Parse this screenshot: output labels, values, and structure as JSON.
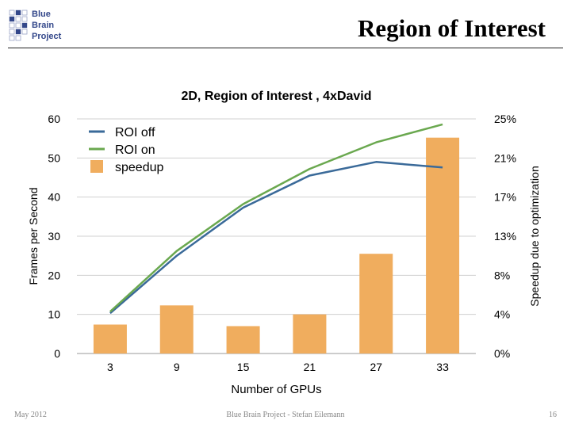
{
  "logo": {
    "lines": [
      "Blue",
      "Brain",
      "Project"
    ]
  },
  "slide": {
    "title": "Region of Interest"
  },
  "footer": {
    "left": "May 2012",
    "center": "Blue Brain Project - Stefan Eilemann",
    "right": "16"
  },
  "colors": {
    "roi_off": "#3a6a99",
    "roi_on": "#6aa84f",
    "speedup": "#f0ad5e",
    "logo": "#33478a"
  },
  "chart_data": {
    "type": "bar",
    "title": "2D, Region of Interest , 4xDavid",
    "xlabel": "Number of GPUs",
    "ylabel": "Frames per Second",
    "y2label": "Speedup due to optimization",
    "categories": [
      "3",
      "9",
      "15",
      "21",
      "27",
      "33"
    ],
    "ylim": [
      0,
      60
    ],
    "y_ticks": [
      "0",
      "10",
      "20",
      "30",
      "40",
      "50",
      "60"
    ],
    "y2_ticks": [
      "0%",
      "4%",
      "8%",
      "13%",
      "17%",
      "21%",
      "25%"
    ],
    "legend_position": "top-left",
    "grid": true,
    "series": [
      {
        "name": "ROI off",
        "type": "line",
        "axis": "left",
        "values": [
          10.3,
          25.0,
          37.3,
          45.5,
          49.0,
          47.6
        ]
      },
      {
        "name": "ROI on",
        "type": "line",
        "axis": "left",
        "values": [
          10.7,
          26.2,
          38.2,
          47.2,
          54.0,
          58.6
        ]
      },
      {
        "name": "speedup",
        "type": "bar",
        "axis": "left",
        "values": [
          7.4,
          12.3,
          7.0,
          10.0,
          25.5,
          55.2
        ]
      }
    ]
  }
}
